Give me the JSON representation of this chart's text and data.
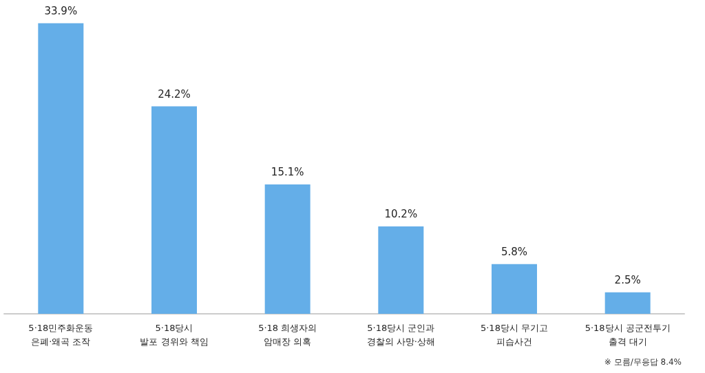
{
  "chart_data": {
    "type": "bar",
    "categories": [
      "5·18민주화운동\n은폐·왜곡 조작",
      "5·18당시\n발포 경위와 책임",
      "5·18 희생자의\n암매장 의혹",
      "5·18당시 군인과\n경찰의 사망·상해",
      "5·18당시 무기고\n피습사건",
      "5·18당시 공군전투기\n출격 대기"
    ],
    "values": [
      33.9,
      24.2,
      15.1,
      10.2,
      5.8,
      2.5
    ],
    "value_labels": [
      "33.9%",
      "24.2%",
      "15.1%",
      "10.2%",
      "5.8%",
      "2.5%"
    ],
    "color": "#64aee8",
    "annotations": [
      "※ 모름/무응답 8.4%"
    ]
  }
}
